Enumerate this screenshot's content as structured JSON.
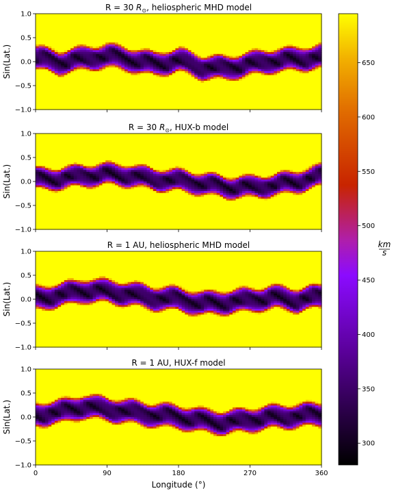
{
  "chart_data": [
    {
      "type": "heatmap",
      "title": "R = 30 R⊙, heliospheric MHD model",
      "title_prefix": "R = 30 ",
      "title_symbol": "R",
      "title_subscript": "⊙",
      "title_suffix": ", heliospheric MHD model",
      "ylabel": "Sin(Lat.)",
      "xlim": [
        0,
        360
      ],
      "ylim": [
        -1.0,
        1.0
      ],
      "yticks": [
        "−1.0",
        "−0.5",
        "0.0",
        "0.5",
        "1.0"
      ],
      "band_center_deg": [
        [
          0,
          0.08
        ],
        [
          30,
          -0.02
        ],
        [
          60,
          0.06
        ],
        [
          90,
          0.12
        ],
        [
          120,
          0.04
        ],
        [
          150,
          -0.06
        ],
        [
          180,
          0.03
        ],
        [
          210,
          -0.12
        ],
        [
          240,
          -0.14
        ],
        [
          270,
          -0.05
        ],
        [
          300,
          0.02
        ],
        [
          330,
          0.05
        ],
        [
          360,
          0.1
        ]
      ],
      "band_half_width": 0.26
    },
    {
      "type": "heatmap",
      "title": "R = 30 R⊙, HUX-b model",
      "title_prefix": "R = 30 ",
      "title_symbol": "R",
      "title_subscript": "⊙",
      "title_suffix": ", HUX-b model",
      "ylabel": "Sin(Lat.)",
      "xlim": [
        0,
        360
      ],
      "ylim": [
        -1.0,
        1.0
      ],
      "yticks": [
        "−1.0",
        "−0.5",
        "0.0",
        "0.5",
        "1.0"
      ],
      "band_center_deg": [
        [
          0,
          0.05
        ],
        [
          30,
          0.06
        ],
        [
          60,
          0.12
        ],
        [
          90,
          0.15
        ],
        [
          120,
          0.12
        ],
        [
          150,
          0.04
        ],
        [
          180,
          0.02
        ],
        [
          210,
          -0.05
        ],
        [
          240,
          -0.12
        ],
        [
          270,
          -0.12
        ],
        [
          300,
          -0.08
        ],
        [
          330,
          0.0
        ],
        [
          360,
          0.12
        ]
      ],
      "band_half_width": 0.24
    },
    {
      "type": "heatmap",
      "title": "R = 1 AU, heliospheric MHD model",
      "title_prefix": "R = 1 AU, heliospheric MHD model",
      "title_symbol": "",
      "title_subscript": "",
      "title_suffix": "",
      "ylabel": "Sin(Lat.)",
      "xlim": [
        0,
        360
      ],
      "ylim": [
        -1.0,
        1.0
      ],
      "yticks": [
        "−1.0",
        "−0.5",
        "0.0",
        "0.5",
        "1.0"
      ],
      "band_center_deg": [
        [
          0,
          0.02
        ],
        [
          30,
          0.08
        ],
        [
          60,
          0.18
        ],
        [
          90,
          0.16
        ],
        [
          120,
          0.1
        ],
        [
          150,
          0.02
        ],
        [
          180,
          0.0
        ],
        [
          210,
          -0.1
        ],
        [
          240,
          -0.06
        ],
        [
          270,
          -0.02
        ],
        [
          300,
          0.04
        ],
        [
          330,
          -0.02
        ],
        [
          360,
          0.06
        ]
      ],
      "band_half_width": 0.26
    },
    {
      "type": "heatmap",
      "title": "R = 1 AU, HUX-f model",
      "title_prefix": "R = 1 AU, HUX-f model",
      "title_symbol": "",
      "title_subscript": "",
      "title_suffix": "",
      "ylabel": "Sin(Lat.)",
      "xlabel": "Longitude (°)",
      "xlim": [
        0,
        360
      ],
      "ylim": [
        -1.0,
        1.0
      ],
      "xticks": [
        0,
        90,
        180,
        270,
        360
      ],
      "yticks": [
        "−1.0",
        "−0.5",
        "0.0",
        "0.5",
        "1.0"
      ],
      "band_center_deg": [
        [
          0,
          0.05
        ],
        [
          30,
          0.1
        ],
        [
          60,
          0.22
        ],
        [
          90,
          0.16
        ],
        [
          120,
          0.1
        ],
        [
          150,
          0.04
        ],
        [
          180,
          0.0
        ],
        [
          210,
          -0.08
        ],
        [
          240,
          -0.12
        ],
        [
          270,
          -0.06
        ],
        [
          300,
          0.0
        ],
        [
          330,
          0.02
        ],
        [
          360,
          0.06
        ]
      ],
      "band_half_width": 0.26
    }
  ],
  "colorbar": {
    "colormap": "gnuplot",
    "vmin": 280,
    "vmax": 695,
    "ticks": [
      300,
      350,
      400,
      450,
      500,
      550,
      600,
      650
    ],
    "label_numerator": "km",
    "label_denominator": "s"
  }
}
